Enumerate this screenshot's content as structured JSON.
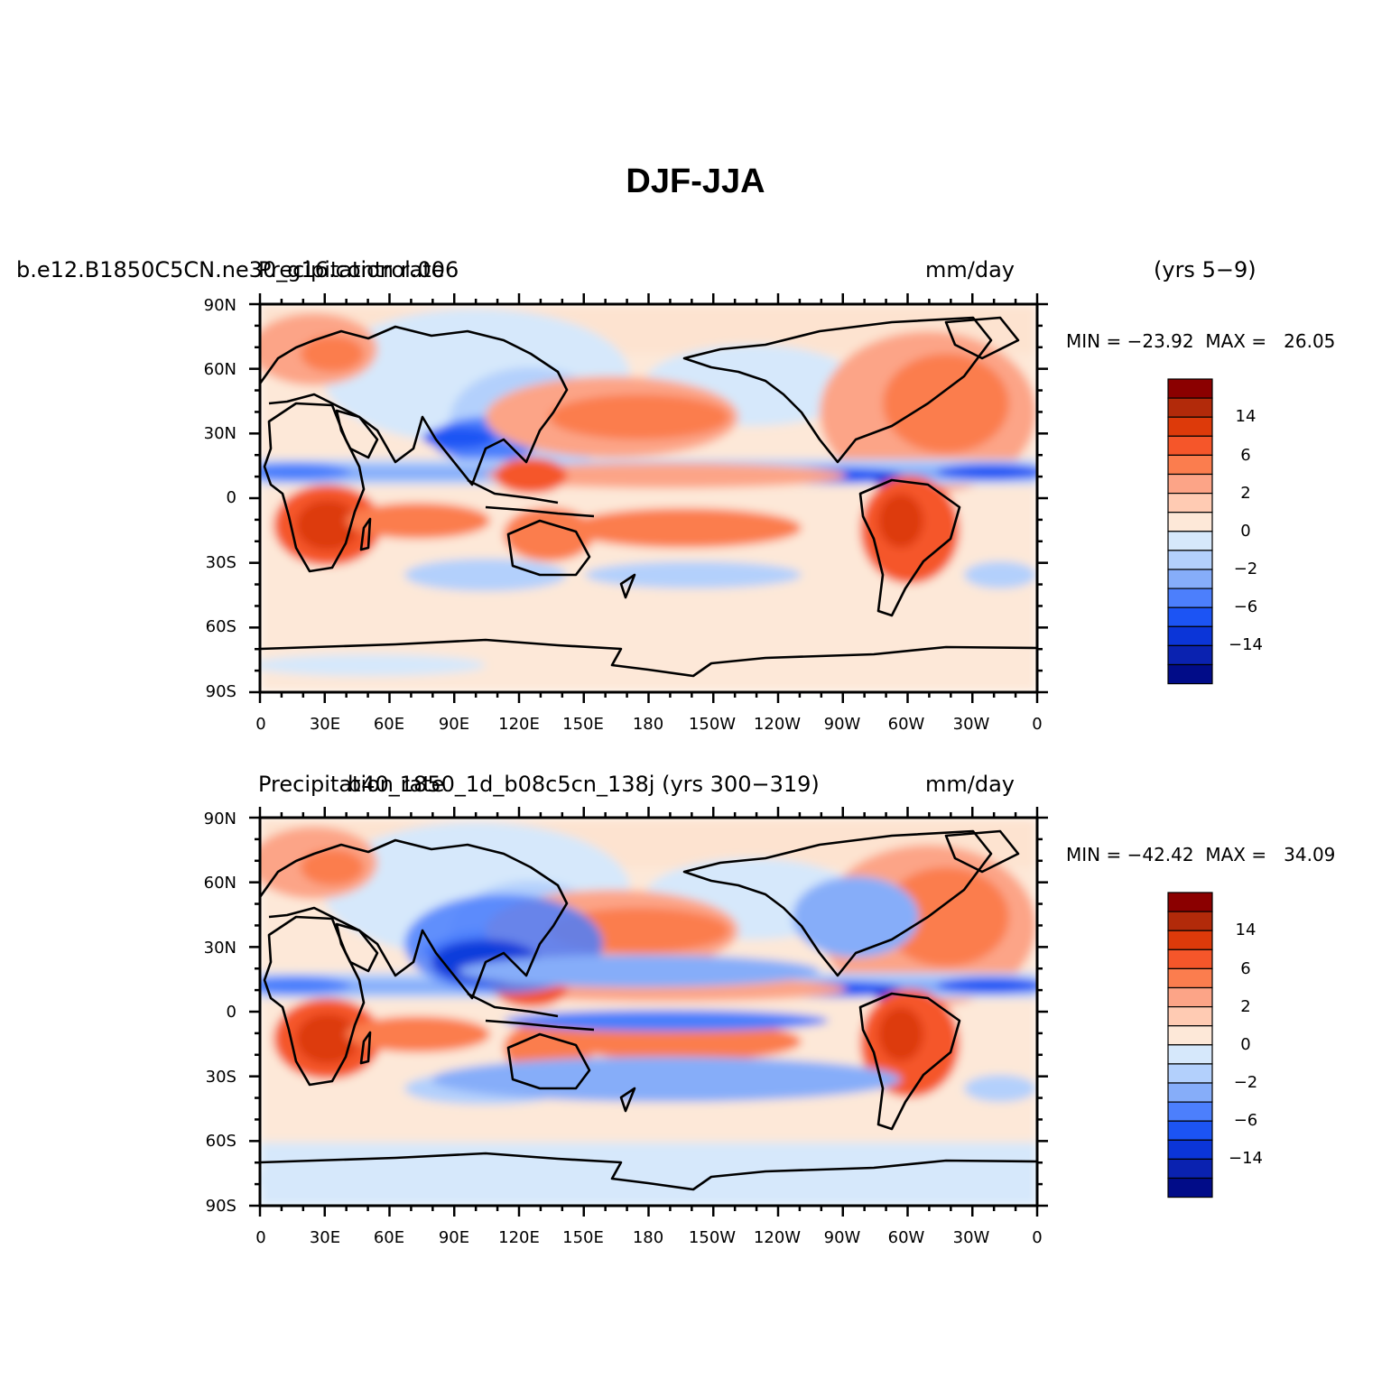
{
  "figure": {
    "title": "DJF-JJA"
  },
  "panels": [
    {
      "case_name": "b.e12.B1850C5CN.ne30_g16.control.006",
      "variable": "Precipitation rate",
      "units": "mm/day",
      "years": "(yrs 5−9)",
      "stats": "MIN = −23.92  MAX =   26.05"
    },
    {
      "case_name": "b40_1850_1d_b08c5cn_138j (yrs 300−319)",
      "variable": "Precipitation rate",
      "units": "mm/day",
      "years": "",
      "stats": "MIN = −42.42  MAX =   34.09"
    }
  ],
  "axes": {
    "lat_labels": [
      "90N",
      "60N",
      "30N",
      "0",
      "30S",
      "60S",
      "90S"
    ],
    "lon_labels": [
      "0",
      "30E",
      "60E",
      "90E",
      "120E",
      "150E",
      "180",
      "150W",
      "120W",
      "90W",
      "60W",
      "30W",
      "0"
    ]
  },
  "legend": {
    "labels": [
      "14",
      "6",
      "2",
      "0",
      "−2",
      "−6",
      "−14"
    ],
    "colors": [
      "#8b0000",
      "#b22a0a",
      "#dd3a0a",
      "#f5562a",
      "#fb7d4e",
      "#fca487",
      "#ffcbb3",
      "#fde8d8",
      "#d6e8fb",
      "#b3d0fc",
      "#86adf9",
      "#4c7ffc",
      "#1c54f4",
      "#0b35d8",
      "#0a22b0",
      "#010c88"
    ]
  },
  "colors": {
    "line": "#000000",
    "background": "#ffffff"
  }
}
